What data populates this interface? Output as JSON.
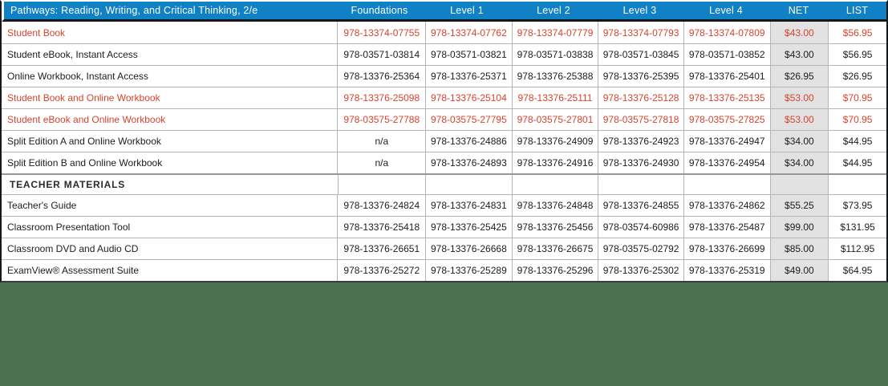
{
  "header": {
    "title": "Pathways: Reading, Writing, and Critical Thinking, 2/e",
    "columns": [
      "Foundations",
      "Level 1",
      "Level 2",
      "Level 3",
      "Level 4",
      "NET",
      "LIST"
    ]
  },
  "rows": [
    {
      "label": "Student Book",
      "highlight": true,
      "section": false,
      "isbns": [
        "978-13374-07755",
        "978-13374-07762",
        "978-13374-07779",
        "978-13374-07793",
        "978-13374-07809"
      ],
      "net": "$43.00",
      "list": "$56.95"
    },
    {
      "label": "Student eBook, Instant Access",
      "highlight": false,
      "section": false,
      "isbns": [
        "978-03571-03814",
        "978-03571-03821",
        "978-03571-03838",
        "978-03571-03845",
        "978-03571-03852"
      ],
      "net": "$43.00",
      "list": "$56.95"
    },
    {
      "label": "Online Workbook, Instant Access",
      "highlight": false,
      "section": false,
      "isbns": [
        "978-13376-25364",
        "978-13376-25371",
        "978-13376-25388",
        "978-13376-25395",
        "978-13376-25401"
      ],
      "net": "$26.95",
      "list": "$26.95"
    },
    {
      "label": "Student Book and Online Workbook",
      "highlight": true,
      "section": false,
      "isbns": [
        "978-13376-25098",
        "978-13376-25104",
        "978-13376-25111",
        "978-13376-25128",
        "978-13376-25135"
      ],
      "net": "$53.00",
      "list": "$70.95"
    },
    {
      "label": "Student eBook and Online Workbook",
      "highlight": true,
      "section": false,
      "isbns": [
        "978-03575-27788",
        "978-03575-27795",
        "978-03575-27801",
        "978-03575-27818",
        "978-03575-27825"
      ],
      "net": "$53.00",
      "list": "$70.95"
    },
    {
      "label": "Split Edition A and Online Workbook",
      "highlight": false,
      "section": false,
      "isbns": [
        "n/a",
        "978-13376-24886",
        "978-13376-24909",
        "978-13376-24923",
        "978-13376-24947"
      ],
      "net": "$34.00",
      "list": "$44.95"
    },
    {
      "label": "Split Edition B and Online Workbook",
      "highlight": false,
      "section": false,
      "isbns": [
        "n/a",
        "978-13376-24893",
        "978-13376-24916",
        "978-13376-24930",
        "978-13376-24954"
      ],
      "net": "$34.00",
      "list": "$44.95"
    },
    {
      "label": "TEACHER MATERIALS",
      "highlight": false,
      "section": true,
      "isbns": [
        "",
        "",
        "",
        "",
        ""
      ],
      "net": "",
      "list": ""
    },
    {
      "label": "Teacher's Guide",
      "highlight": false,
      "section": false,
      "isbns": [
        "978-13376-24824",
        "978-13376-24831",
        "978-13376-24848",
        "978-13376-24855",
        "978-13376-24862"
      ],
      "net": "$55.25",
      "list": "$73.95"
    },
    {
      "label": "Classroom Presentation Tool",
      "highlight": false,
      "section": false,
      "isbns": [
        "978-13376-25418",
        "978-13376-25425",
        "978-13376-25456",
        "978-03574-60986",
        "978-13376-25487"
      ],
      "net": "$99.00",
      "list": "$131.95"
    },
    {
      "label": "Classroom DVD and Audio CD",
      "highlight": false,
      "section": false,
      "isbns": [
        "978-13376-26651",
        "978-13376-26668",
        "978-13376-26675",
        "978-03575-02792",
        "978-13376-26699"
      ],
      "net": "$85.00",
      "list": "$112.95"
    },
    {
      "label": "ExamView® Assessment Suite",
      "highlight": false,
      "section": false,
      "isbns": [
        "978-13376-25272",
        "978-13376-25289",
        "978-13376-25296",
        "978-13376-25302",
        "978-13376-25319"
      ],
      "net": "$49.00",
      "list": "$64.95"
    }
  ],
  "colors": {
    "header_blue": "#0f81c4",
    "highlight_red": "#d8432e",
    "net_column_gray": "#e2e2e2",
    "background_green": "#4b7152",
    "border_black": "#15191c"
  }
}
